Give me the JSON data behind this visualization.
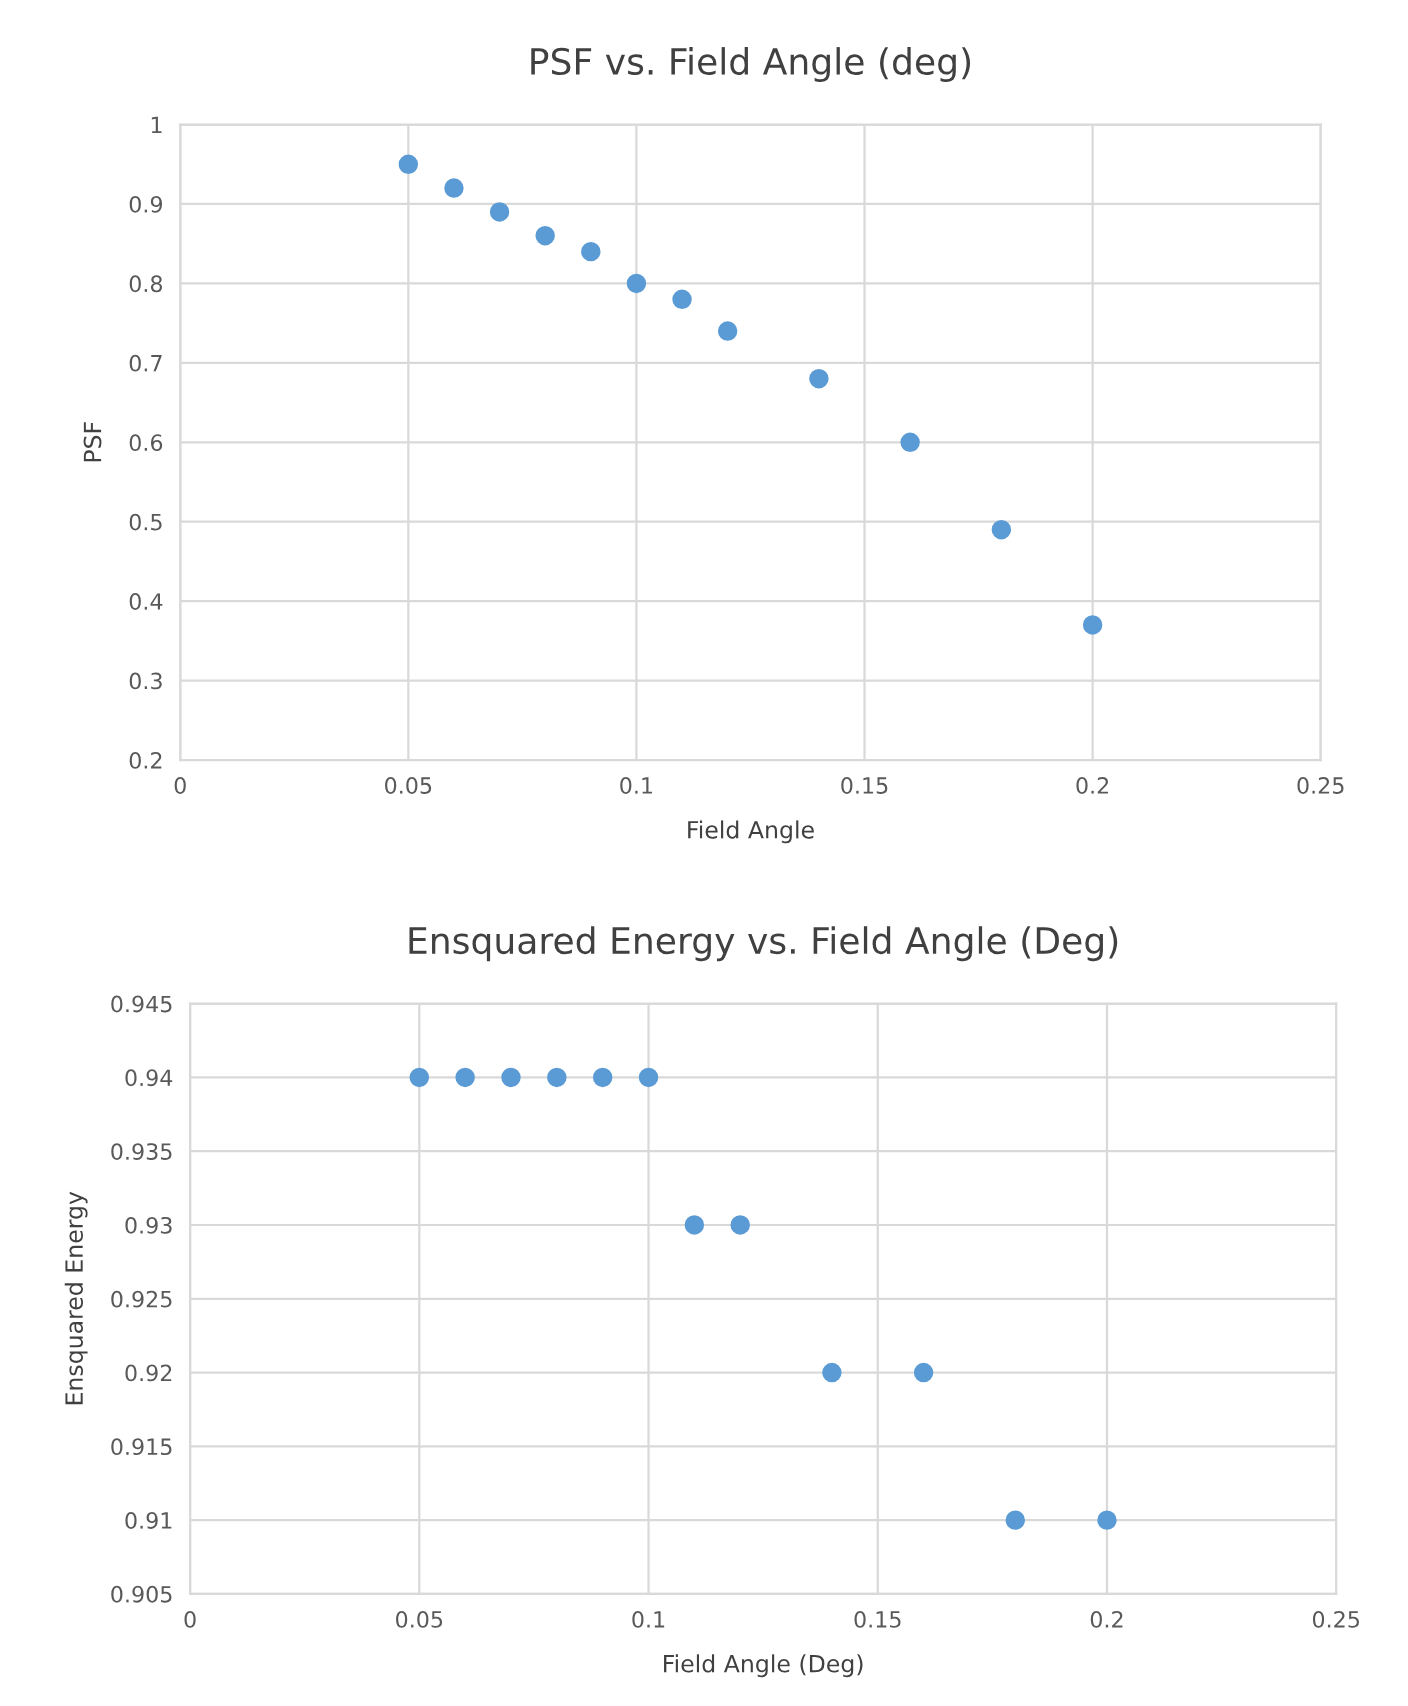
{
  "chart_data": [
    {
      "type": "scatter",
      "title": "PSF vs. Field Angle (deg)",
      "xlabel": "Field Angle",
      "ylabel": "PSF",
      "x": [
        0.05,
        0.06,
        0.07,
        0.08,
        0.09,
        0.1,
        0.11,
        0.12,
        0.14,
        0.16,
        0.18,
        0.2
      ],
      "series": [
        {
          "color": "#5b9bd5",
          "values": [
            0.95,
            0.92,
            0.89,
            0.86,
            0.84,
            0.8,
            0.78,
            0.74,
            0.68,
            0.6,
            0.49,
            0.37
          ]
        }
      ],
      "xlim": [
        0,
        0.25
      ],
      "xticks": [
        0,
        0.05,
        0.1,
        0.15,
        0.2,
        0.25
      ],
      "ylim": [
        0.2,
        1
      ],
      "yticks": [
        0.2,
        0.3,
        0.4,
        0.5,
        0.6,
        0.7,
        0.8,
        0.9,
        1
      ],
      "grid": true,
      "marker": "circle"
    },
    {
      "type": "scatter",
      "title": "Ensquared Energy vs. Field Angle (Deg)",
      "xlabel": "Field Angle (Deg)",
      "ylabel": "Ensquared Energy",
      "x": [
        0.05,
        0.06,
        0.07,
        0.08,
        0.09,
        0.1,
        0.11,
        0.12,
        0.14,
        0.16,
        0.18,
        0.2
      ],
      "series": [
        {
          "color": "#5b9bd5",
          "values": [
            0.94,
            0.94,
            0.94,
            0.94,
            0.94,
            0.94,
            0.93,
            0.93,
            0.92,
            0.92,
            0.91,
            0.91
          ]
        }
      ],
      "xlim": [
        0,
        0.25
      ],
      "xticks": [
        0,
        0.05,
        0.1,
        0.15,
        0.2,
        0.25
      ],
      "ylim": [
        0.905,
        0.945
      ],
      "yticks": [
        0.905,
        0.91,
        0.915,
        0.92,
        0.925,
        0.93,
        0.935,
        0.94,
        0.945
      ],
      "grid": true,
      "marker": "circle"
    }
  ]
}
